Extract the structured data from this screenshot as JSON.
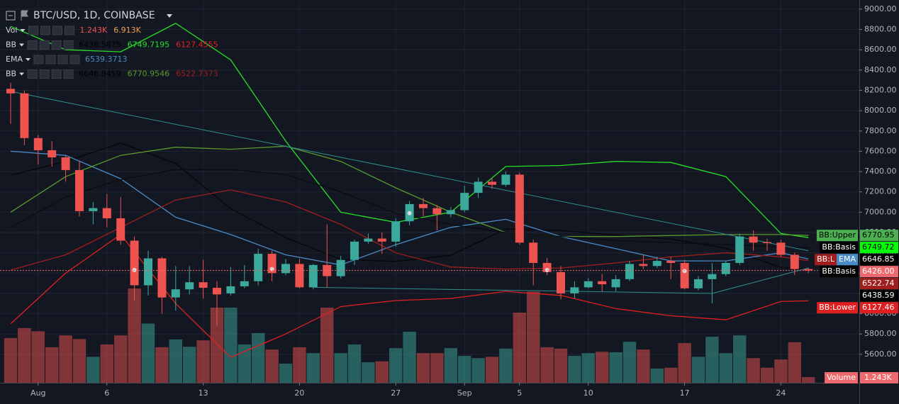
{
  "chart_data": {
    "type": "candlestick",
    "title": "BTC/USD, 1D, COINBASE",
    "categories": [
      null,
      null,
      "Aug",
      null,
      null,
      null,
      null,
      "6",
      null,
      null,
      null,
      null,
      null,
      null,
      "13",
      null,
      null,
      null,
      null,
      null,
      null,
      "20",
      null,
      null,
      null,
      null,
      null,
      null,
      "27",
      null,
      null,
      null,
      null,
      "Sep",
      null,
      null,
      null,
      "5",
      null,
      null,
      null,
      null,
      "10",
      null,
      null,
      null,
      null,
      null,
      null,
      "17",
      null,
      null,
      null,
      null,
      null,
      null,
      "24",
      null,
      null
    ],
    "open": [
      8215,
      8170,
      7730,
      7610,
      7540,
      7415,
      7010,
      7040,
      6940,
      6720,
      6280,
      6545,
      6160,
      6240,
      6310,
      6255,
      6200,
      6270,
      6320,
      6590,
      6400,
      6490,
      6260,
      6480,
      6370,
      6530,
      6710,
      6740,
      6710,
      6910,
      7080,
      7040,
      6980,
      7020,
      7190,
      7300,
      7270,
      7370,
      6700,
      6500,
      6410,
      6200,
      6260,
      6320,
      6260,
      6340,
      6490,
      6470,
      6520,
      6500,
      6250,
      6340,
      6390,
      6500,
      6760,
      6705,
      6700,
      6580,
      6440
    ],
    "high": [
      8275,
      8200,
      7760,
      7700,
      7560,
      7500,
      7100,
      7180,
      7150,
      6760,
      6620,
      6560,
      6470,
      6470,
      6530,
      6320,
      6460,
      6480,
      6640,
      6620,
      6540,
      6540,
      6490,
      6880,
      6570,
      6730,
      6790,
      6800,
      6940,
      7110,
      7140,
      7070,
      7050,
      7260,
      7340,
      7340,
      7400,
      7390,
      6730,
      6550,
      6470,
      6320,
      6350,
      6390,
      6380,
      6520,
      6580,
      6560,
      6560,
      6530,
      6370,
      6500,
      6520,
      6790,
      6820,
      6740,
      6730,
      6600,
      6450
    ],
    "low": [
      7870,
      7660,
      7470,
      7450,
      7300,
      6960,
      6880,
      6850,
      6680,
      6130,
      6180,
      6000,
      6030,
      6190,
      6150,
      5880,
      6180,
      6250,
      6280,
      6320,
      6380,
      6250,
      6240,
      6260,
      6350,
      6480,
      6690,
      6590,
      6660,
      6870,
      6960,
      6820,
      6950,
      7000,
      7140,
      7230,
      7250,
      6680,
      6280,
      6380,
      6140,
      6150,
      6250,
      6220,
      6220,
      6320,
      6440,
      6450,
      6340,
      6240,
      6230,
      6100,
      6370,
      6480,
      6620,
      6620,
      6560,
      6380,
      6400
    ],
    "close": [
      8170,
      7730,
      7610,
      7540,
      7415,
      7010,
      7040,
      6940,
      6720,
      6280,
      6545,
      6160,
      6240,
      6310,
      6255,
      6190,
      6270,
      6320,
      6590,
      6400,
      6490,
      6260,
      6480,
      6370,
      6530,
      6710,
      6740,
      6710,
      6910,
      7080,
      7040,
      6980,
      7020,
      7190,
      7300,
      7270,
      7370,
      6700,
      6500,
      6410,
      6200,
      6260,
      6320,
      6290,
      6340,
      6490,
      6470,
      6520,
      6500,
      6250,
      6340,
      6390,
      6500,
      6760,
      6700,
      6695,
      6580,
      6440,
      6426
    ],
    "volume": [
      9.8,
      12.0,
      11.3,
      7.8,
      10.4,
      9.6,
      5.7,
      8.4,
      10.4,
      20.7,
      13.0,
      7.8,
      9.5,
      7.9,
      9.3,
      16.5,
      16.5,
      8.4,
      10.9,
      7.3,
      4.2,
      7.8,
      6.5,
      16.5,
      6.5,
      8.4,
      4.5,
      4.7,
      7.6,
      11.2,
      6.5,
      6.5,
      7.6,
      5.9,
      5.4,
      5.7,
      7.5,
      15.4,
      20.0,
      7.8,
      7.5,
      5.9,
      6.5,
      6.8,
      6.7,
      9.0,
      7.3,
      3.1,
      3.3,
      8.7,
      5.7,
      10.1,
      6.5,
      10.4,
      5.4,
      3.3,
      5.1,
      8.9,
      1.243
    ],
    "up_color": "#3ba99c",
    "down_color": "#ef5350",
    "ylim": [
      5320,
      9090
    ],
    "yticks": [
      {
        "value": 5600,
        "label": "5600.00"
      },
      {
        "value": 5800,
        "label": "5800.00"
      },
      {
        "value": 6000,
        "label": "6000.00"
      },
      {
        "value": 6200,
        "label": "6200.00"
      },
      {
        "value": 6400,
        "label": "6400.00"
      },
      {
        "value": 6600,
        "label": "6600.00"
      },
      {
        "value": 6800,
        "label": "6800.00"
      },
      {
        "value": 7000,
        "label": "7000.00"
      },
      {
        "value": 7200,
        "label": "7200.00"
      },
      {
        "value": 7400,
        "label": "7400.00"
      },
      {
        "value": 7600,
        "label": "7600.00"
      },
      {
        "value": 7800,
        "label": "7800.00"
      },
      {
        "value": 8000,
        "label": "8000.00"
      },
      {
        "value": 8200,
        "label": "8200.00"
      },
      {
        "value": 8400,
        "label": "8400.00"
      },
      {
        "value": 8600,
        "label": "8600.00"
      },
      {
        "value": 8800,
        "label": "8800.00"
      },
      {
        "value": 9000,
        "label": "9000.00"
      }
    ],
    "grid": true,
    "indicators": [
      {
        "color": "#26e026",
        "x": [
          0,
          4,
          8,
          12,
          16,
          20,
          24,
          28,
          32,
          36,
          40,
          44,
          48,
          52,
          56,
          58
        ],
        "values": [
          8830,
          8600,
          8580,
          8860,
          8500,
          7700,
          7000,
          6900,
          7000,
          7450,
          7460,
          7500,
          7490,
          7350,
          6790,
          6750
        ]
      },
      {
        "color": "#e02020",
        "x": [
          0,
          4,
          8,
          12,
          16,
          20,
          24,
          28,
          32,
          36,
          40,
          44,
          48,
          52,
          56,
          58
        ],
        "values": [
          5900,
          6400,
          6780,
          6100,
          5570,
          5800,
          6070,
          6130,
          6150,
          6220,
          6180,
          6050,
          5980,
          5940,
          6120,
          6127
        ]
      },
      {
        "color": "#05070a",
        "x": [
          0,
          4,
          8,
          12,
          16,
          20,
          24,
          28,
          32,
          36,
          40,
          44,
          48,
          52,
          56,
          58
        ],
        "values": [
          7365,
          7500,
          7680,
          7480,
          7035,
          6750,
          6535,
          6515,
          6575,
          6835,
          6820,
          6775,
          6735,
          6645,
          6455,
          6439
        ]
      },
      {
        "color": "#4a8cc8",
        "x": [
          0,
          4,
          8,
          12,
          16,
          20,
          24,
          28,
          32,
          36,
          40,
          44,
          48,
          52,
          56,
          58
        ],
        "values": [
          7600,
          7560,
          7330,
          6950,
          6780,
          6580,
          6480,
          6680,
          6850,
          6930,
          6760,
          6640,
          6520,
          6520,
          6600,
          6539
        ]
      },
      {
        "color": "#5a9a2c",
        "x": [
          0,
          4,
          8,
          12,
          16,
          20,
          24,
          28,
          32,
          36,
          40,
          44,
          48,
          52,
          56,
          58
        ],
        "values": [
          7000,
          7350,
          7560,
          7640,
          7620,
          7650,
          7500,
          7240,
          7000,
          6800,
          6760,
          6760,
          6770,
          6780,
          6780,
          6771
        ]
      },
      {
        "color": "#0a0c10",
        "x": [
          0,
          4,
          8,
          12,
          16,
          20,
          24,
          28,
          32,
          36,
          40,
          44,
          48,
          52,
          56,
          58
        ],
        "values": [
          6850,
          7150,
          7320,
          7420,
          7420,
          7370,
          7200,
          6990,
          6880,
          6800,
          6760,
          6720,
          6700,
          6680,
          6660,
          6647
        ]
      },
      {
        "color": "#a01e1e",
        "x": [
          0,
          4,
          8,
          12,
          16,
          20,
          24,
          28,
          32,
          36,
          40,
          44,
          48,
          52,
          56,
          58
        ],
        "values": [
          6430,
          6580,
          6850,
          7120,
          7220,
          7100,
          6880,
          6600,
          6460,
          6440,
          6450,
          6500,
          6560,
          6600,
          6560,
          6523
        ]
      }
    ],
    "trend_lines": [
      {
        "color": "#2f8f8c",
        "x": [
          0,
          58
        ],
        "values": [
          8190,
          6620
        ]
      },
      {
        "color": "#2f8f8c",
        "x": [
          22,
          51,
          58
        ],
        "values": [
          6260,
          6200,
          6450
        ]
      }
    ],
    "signal_markers": {
      "color": "#d8d8d8",
      "x": [
        9,
        19,
        29,
        39,
        49
      ],
      "values": [
        6430,
        6440,
        6990,
        6430,
        6420
      ]
    },
    "price_tags": [
      {
        "value": 6770.95,
        "label": "6770.95",
        "color": "#4caf50",
        "text_color": "#000000",
        "names": [
          {
            "text": "BB:Upper",
            "color": "#4caf50"
          }
        ]
      },
      {
        "value": 6749.72,
        "label": "6749.72",
        "color": "#00ff00",
        "text_color": "#000000",
        "names": [
          {
            "text": "BB:Basis",
            "color": "#000000"
          }
        ]
      },
      {
        "value": 6646.85,
        "label": "6646.85",
        "color": "#000000",
        "text_color": "#ffffff",
        "names": [
          {
            "text": "BB:L",
            "color": "#a01e1e"
          },
          {
            "text": "EMA",
            "color": "#4a8cc8"
          }
        ]
      },
      {
        "value": 6426,
        "label": "6426.00",
        "color": "#ef6a6e",
        "text_color": "#ffffff",
        "names": [
          {
            "text": "BB:Basis",
            "color": "#000000"
          }
        ],
        "line": true
      },
      {
        "value": 6522.74,
        "label": "6522.74",
        "color": "#a01e1e",
        "text_color": "#ffffff",
        "names": []
      },
      {
        "value": 6438.59,
        "label": "6438.59",
        "color": "#000000",
        "text_color": "#ffffff",
        "names": []
      },
      {
        "value": 6127.46,
        "label": "6127.46",
        "color": "#e02020",
        "text_color": "#ffffff",
        "names": [
          {
            "text": "BB:Lower",
            "color": "#e02020"
          }
        ]
      }
    ],
    "volume_tag": {
      "name": "Volume",
      "label": "1.243K",
      "color": "#ef6a6e"
    },
    "legend": [
      {
        "name": "Vol",
        "values": [
          "1.243K",
          "6.913K"
        ],
        "colors": [
          "#ef5350",
          "#f0a04b"
        ]
      },
      {
        "name": "BB",
        "values": [
          "6438.5875",
          "6749.7195",
          "6127.4555"
        ],
        "colors": [
          "#000000",
          "#26e026",
          "#e02020"
        ]
      },
      {
        "name": "EMA",
        "values": [
          "6539.3713"
        ],
        "colors": [
          "#4a8cc8"
        ]
      },
      {
        "name": "BB",
        "values": [
          "6646.8459",
          "6770.9546",
          "6522.7373"
        ],
        "colors": [
          "#000000",
          "#5a9a2c",
          "#a01e1e"
        ]
      }
    ]
  }
}
